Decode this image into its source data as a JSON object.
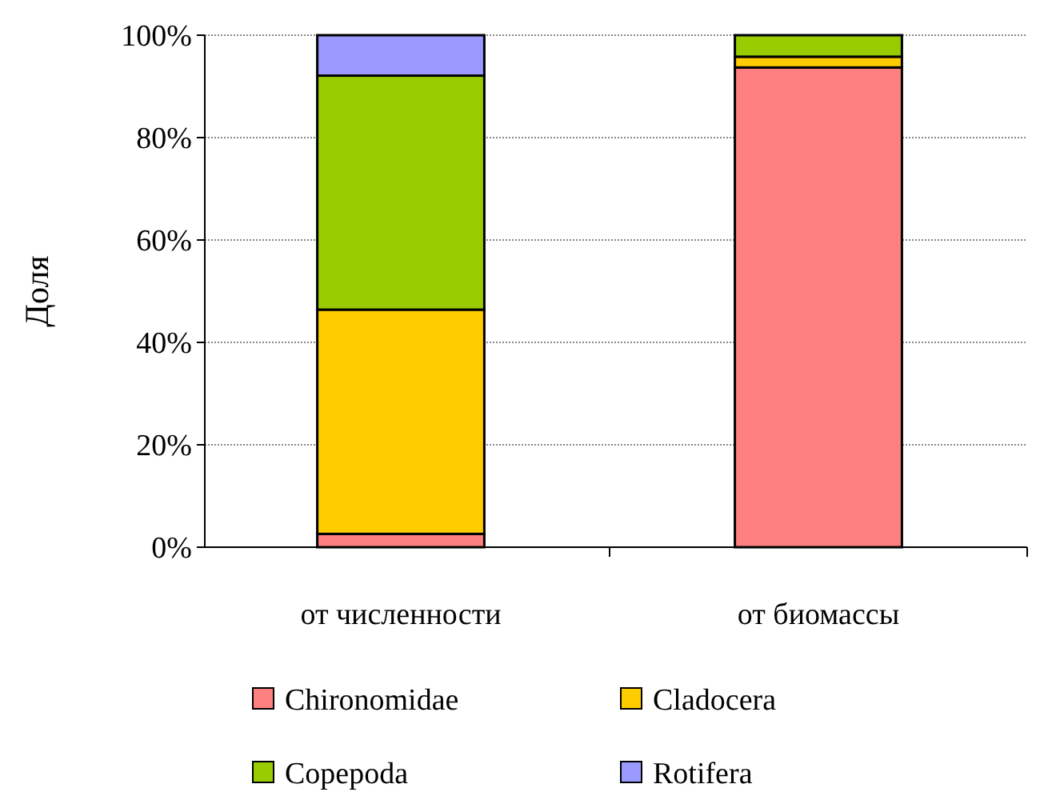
{
  "chart_data": {
    "type": "bar",
    "stacked": true,
    "ylabel": "Доля",
    "categories": [
      "от численности",
      "от биомассы"
    ],
    "series": [
      {
        "name": "Chironomidae",
        "color": "#ff8080",
        "values": [
          2.6,
          93.7
        ]
      },
      {
        "name": "Cladocera",
        "color": "#ffcc00",
        "values": [
          43.8,
          2.1
        ]
      },
      {
        "name": "Copepoda",
        "color": "#99cc00",
        "values": [
          45.7,
          4.2
        ]
      },
      {
        "name": "Rotifera",
        "color": "#9999ff",
        "values": [
          7.9,
          0
        ]
      }
    ],
    "ylim": [
      0,
      100
    ],
    "yticks": [
      {
        "value": 0,
        "label": "0%"
      },
      {
        "value": 20,
        "label": "20%"
      },
      {
        "value": 40,
        "label": "40%"
      },
      {
        "value": 60,
        "label": "60%"
      },
      {
        "value": 80,
        "label": "80%"
      },
      {
        "value": 100,
        "label": "100%"
      }
    ],
    "grid": "y",
    "legend": "bottom"
  }
}
